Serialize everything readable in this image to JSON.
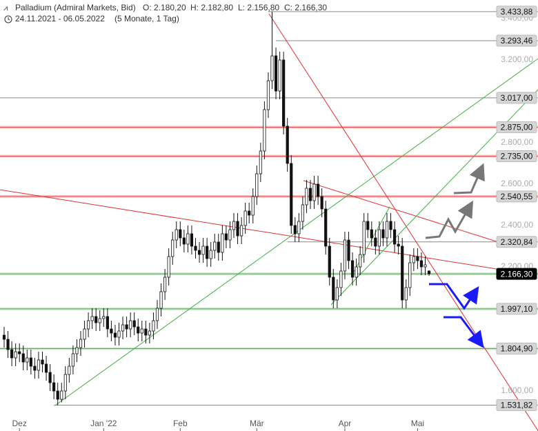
{
  "chart_data": {
    "type": "candlestick",
    "title": "Palladium (Admiral Markets, Bid)",
    "ohlc_labels": [
      "O: 2.180,20",
      "H: 2.182,80",
      "L: 2.156,80",
      "C: 2.166,30"
    ],
    "period": "24.11.2021 - 06.05.2022",
    "period_note": "(5 Monate, 1 Tag)",
    "categories": [
      null,
      null,
      null,
      null,
      "Dez",
      null,
      null,
      null,
      null,
      null,
      null,
      null,
      null,
      null,
      null,
      null,
      null,
      null,
      null,
      null,
      null,
      null,
      null,
      null,
      null,
      null,
      "Jan '22",
      null,
      null,
      null,
      null,
      null,
      null,
      null,
      null,
      null,
      null,
      null,
      null,
      null,
      null,
      null,
      null,
      null,
      null,
      null,
      "Feb",
      null,
      null,
      null,
      null,
      null,
      null,
      null,
      null,
      null,
      null,
      null,
      null,
      null,
      null,
      null,
      null,
      null,
      null,
      null,
      "Mär",
      null,
      null,
      null,
      null,
      null,
      null,
      null,
      null,
      null,
      null,
      null,
      null,
      null,
      null,
      null,
      null,
      null,
      null,
      null,
      null,
      null,
      null,
      "Apr",
      null,
      null,
      null,
      null,
      null,
      null,
      null,
      null,
      null,
      null,
      null,
      null,
      null,
      null,
      null,
      null,
      null,
      null,
      "Mai",
      null,
      null,
      null
    ],
    "open": [
      1870,
      1850,
      1800,
      1760,
      1790,
      1780,
      1740,
      1760,
      1720,
      1700,
      1750,
      1730,
      1690,
      1640,
      1600,
      1560,
      1600,
      1680,
      1720,
      1780,
      1810,
      1850,
      1900,
      1940,
      1960,
      1930,
      1950,
      1960,
      1900,
      1880,
      1860,
      1890,
      1920,
      1900,
      1940,
      1910,
      1880,
      1900,
      1870,
      1890,
      1940,
      2000,
      2080,
      2150,
      2250,
      2330,
      2380,
      2340,
      2310,
      2360,
      2300,
      2280,
      2260,
      2300,
      2240,
      2280,
      2320,
      2270,
      2360,
      2330,
      2380,
      2420,
      2350,
      2400,
      2470,
      2450,
      2540,
      2650,
      2760,
      2960,
      3100,
      3220,
      3050,
      3200,
      2880,
      2700,
      2400,
      2360,
      2420,
      2500,
      2580,
      2520,
      2600,
      2540,
      2480,
      2300,
      2150,
      2040,
      2100,
      2180,
      2330,
      2230,
      2150,
      2200,
      2260,
      2420,
      2380,
      2340,
      2300,
      2380,
      2340,
      2420,
      2380,
      2310,
      2300,
      2040,
      2100,
      2220,
      2250,
      2230,
      2200,
      2180.2
    ],
    "high": [
      1910,
      1890,
      1840,
      1830,
      1830,
      1820,
      1800,
      1800,
      1760,
      1790,
      1790,
      1770,
      1730,
      1680,
      1640,
      1640,
      1720,
      1760,
      1820,
      1850,
      1890,
      1940,
      1980,
      2000,
      2000,
      1990,
      2000,
      2000,
      1940,
      1920,
      1930,
      1960,
      1960,
      1980,
      1980,
      1950,
      1940,
      1940,
      1930,
      1980,
      2040,
      2120,
      2190,
      2290,
      2370,
      2420,
      2420,
      2380,
      2400,
      2400,
      2340,
      2320,
      2340,
      2340,
      2320,
      2360,
      2360,
      2400,
      2400,
      2420,
      2460,
      2460,
      2440,
      2510,
      2510,
      2580,
      2690,
      2800,
      3000,
      3140,
      3433.88,
      3260,
      3240,
      3240,
      2920,
      2740,
      2440,
      2460,
      2540,
      2620,
      2620,
      2640,
      2640,
      2580,
      2520,
      2340,
      2190,
      2140,
      2220,
      2370,
      2370,
      2270,
      2240,
      2300,
      2460,
      2460,
      2420,
      2380,
      2420,
      2420,
      2460,
      2460,
      2420,
      2350,
      2340,
      2140,
      2260,
      2290,
      2290,
      2270,
      2250,
      2182.8
    ],
    "low": [
      1810,
      1760,
      1720,
      1720,
      1740,
      1700,
      1700,
      1680,
      1660,
      1660,
      1690,
      1650,
      1600,
      1560,
      1531.82,
      1545,
      1560,
      1640,
      1680,
      1740,
      1770,
      1810,
      1860,
      1900,
      1890,
      1890,
      1910,
      1860,
      1840,
      1820,
      1820,
      1850,
      1860,
      1860,
      1870,
      1840,
      1840,
      1830,
      1830,
      1850,
      1900,
      1960,
      2040,
      2110,
      2210,
      2290,
      2300,
      2270,
      2270,
      2260,
      2240,
      2220,
      2220,
      2200,
      2200,
      2240,
      2230,
      2230,
      2290,
      2290,
      2340,
      2310,
      2310,
      2360,
      2410,
      2410,
      2500,
      2610,
      2720,
      2920,
      3060,
      3010,
      3010,
      2840,
      2660,
      2360,
      2320,
      2320,
      2380,
      2460,
      2480,
      2480,
      2500,
      2440,
      2260,
      2110,
      2000,
      2000,
      2060,
      2140,
      2190,
      2110,
      2110,
      2160,
      2220,
      2340,
      2300,
      2260,
      2260,
      2300,
      2300,
      2340,
      2270,
      2260,
      2000,
      2000,
      2060,
      2180,
      2190,
      2160,
      2160,
      2156.8
    ],
    "close": [
      1850,
      1800,
      1760,
      1790,
      1780,
      1740,
      1760,
      1720,
      1700,
      1750,
      1730,
      1690,
      1640,
      1600,
      1560,
      1600,
      1680,
      1720,
      1780,
      1810,
      1850,
      1900,
      1940,
      1960,
      1930,
      1950,
      1960,
      1900,
      1880,
      1860,
      1890,
      1920,
      1900,
      1940,
      1910,
      1880,
      1900,
      1870,
      1890,
      1940,
      2000,
      2080,
      2150,
      2250,
      2330,
      2380,
      2340,
      2310,
      2360,
      2300,
      2280,
      2260,
      2300,
      2240,
      2280,
      2320,
      2270,
      2360,
      2330,
      2380,
      2420,
      2350,
      2400,
      2470,
      2450,
      2540,
      2650,
      2760,
      2960,
      3100,
      3220,
      3050,
      3200,
      2880,
      2700,
      2400,
      2360,
      2420,
      2500,
      2580,
      2520,
      2600,
      2540,
      2480,
      2300,
      2150,
      2040,
      2100,
      2180,
      2330,
      2230,
      2150,
      2200,
      2260,
      2420,
      2380,
      2340,
      2300,
      2380,
      2340,
      2420,
      2380,
      2310,
      2300,
      2040,
      2100,
      2220,
      2250,
      2230,
      2200,
      2210,
      2166.3
    ],
    "up_color": "#ffffff",
    "down_color": "#111111",
    "ylim": [
      1460,
      3490
    ],
    "yticks": [
      {
        "value": 1600,
        "label": "1.600,00"
      },
      {
        "value": 2200,
        "label": "2.200,00"
      },
      {
        "value": 2400,
        "label": "2.400,00"
      },
      {
        "value": 2600,
        "label": "2.600,00"
      },
      {
        "value": 2800,
        "label": "2.800,00"
      },
      {
        "value": 3200,
        "label": "3.200,00"
      },
      {
        "value": 3400,
        "label": "3.400,00"
      }
    ],
    "grid": false,
    "levels": [
      {
        "value": 3433.88,
        "label": "3.433,88",
        "color": "#888888",
        "from": 69
      },
      {
        "value": 3293.46,
        "label": "3.293,46",
        "color": "#888888",
        "from": 71
      },
      {
        "value": 3017,
        "label": "3.017,00",
        "color": "#888888"
      },
      {
        "value": 2875,
        "label": "2.875,00",
        "color": "#e05050"
      },
      {
        "value": 2735,
        "label": "2.735,00",
        "color": "#e05050"
      },
      {
        "value": 2540.55,
        "label": "2.540,55",
        "color": "#e05050"
      },
      {
        "value": 2320.84,
        "label": "2.320,84",
        "color": "#888888",
        "from": 74
      },
      {
        "value": 2166.3,
        "label": "2.166,30",
        "color": "#4caf50",
        "box": "#000000"
      },
      {
        "value": 1997.1,
        "label": "1.997,10",
        "color": "#4caf50"
      },
      {
        "value": 1804.9,
        "label": "1.804,90",
        "color": "#4caf50"
      },
      {
        "value": 1531.82,
        "label": "1.531,82",
        "color": "#888888",
        "from": 13
      }
    ],
    "trendlines": [
      {
        "x": [
          69.2,
          139.5
        ],
        "y": [
          3423,
          1407
        ],
        "color": "#e03030"
      },
      {
        "x": [
          -1.08,
          128.6
        ],
        "y": [
          2573,
          2190
        ],
        "color": "#e03030"
      },
      {
        "x": [
          78.2,
          128.6
        ],
        "y": [
          2617,
          2323
        ],
        "color": "#e03030"
      },
      {
        "x": [
          13.3,
          139.5
        ],
        "y": [
          1530,
          3207
        ],
        "color": "#3cb043"
      },
      {
        "x": [
          85.4,
          139.5
        ],
        "y": [
          2017,
          3057
        ],
        "color": "#3cb043"
      },
      {
        "x": [
          90.8,
          100.7
        ],
        "y": [
          2157,
          2490
        ],
        "color": "#3cb043"
      }
    ]
  }
}
